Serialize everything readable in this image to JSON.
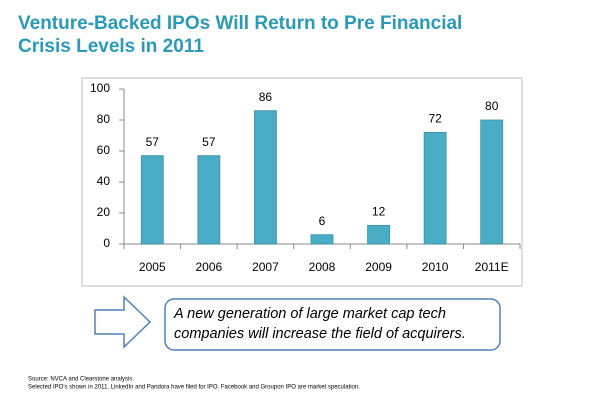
{
  "chart_data": {
    "type": "bar",
    "title": [
      "Venture-Backed IPOs Will Return to Pre Financial",
      "Crisis Levels in 2011"
    ],
    "categories": [
      "2005",
      "2006",
      "2007",
      "2008",
      "2009",
      "2010",
      "2011E"
    ],
    "values": [
      57,
      57,
      86,
      6,
      12,
      72,
      80
    ],
    "color": "#4bacc6",
    "ylim": [
      0,
      100
    ],
    "yticks": [
      0,
      20,
      40,
      60,
      80,
      100
    ],
    "grid": false
  },
  "callout": [
    "A new generation of large market cap tech",
    "companies will increase the field of acquirers."
  ],
  "notes": [
    "Source: NVCA and Clearstone analysis.",
    "Selected IPO's shown in 2011. LinkedIn and Pandora have filed for IPO. Facebook and Groupon IPO are market speculation."
  ]
}
